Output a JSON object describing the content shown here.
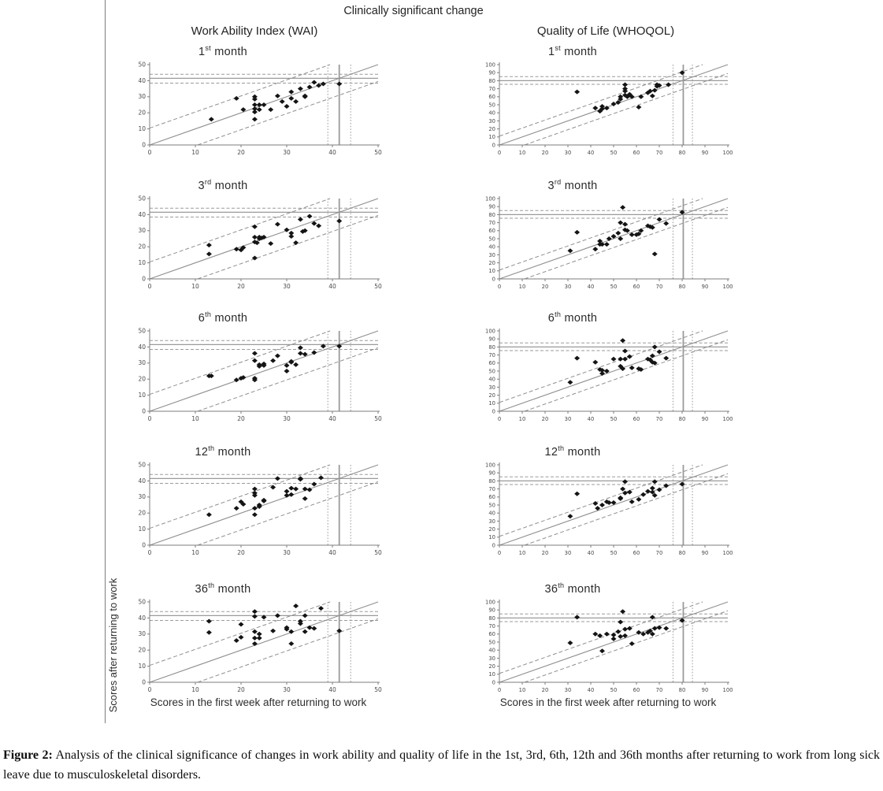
{
  "figure": {
    "title": "Clinically significant change",
    "column_headers": [
      "Work Ability Index (WAI)",
      "Quality of Life (WHOQOL)"
    ],
    "x_axis_label": "Scores in the first week after returning to work",
    "y_axis_label": "Scores after returning to work",
    "colors": {
      "axis_gray": "#7d7d7d",
      "line_gray": "#8f8f8f",
      "ref_gray": "#9a9a9a",
      "point_black": "#141414",
      "tick_text": "#4a4a4a"
    }
  },
  "caption": {
    "label": "Figure 2:",
    "text": "Analysis of the clinical significance of changes in work ability and quality of life in the 1st, 3rd, 6th, 12th and 36th months after returning to work from long sick leave due to musculoskeletal disorders."
  },
  "chart_data": [
    {
      "type": "scatter",
      "panel": "WAI",
      "month": {
        "num": "1",
        "sup": "st",
        "rest": " month"
      },
      "xlim": [
        0,
        50
      ],
      "ylim": [
        0,
        50
      ],
      "ticks": [
        0,
        10,
        20,
        30,
        40,
        50
      ],
      "identity_line": true,
      "band_offset": 10.5,
      "ref_h_solid": 41.5,
      "ref_h_dashed": [
        44,
        38.5
      ],
      "ref_v_solid": 41.5,
      "ref_v_dashed": [
        39,
        44
      ],
      "points": [
        [
          13.5,
          16
        ],
        [
          19,
          29
        ],
        [
          20.5,
          22
        ],
        [
          23,
          30
        ],
        [
          23,
          28.5
        ],
        [
          23,
          25
        ],
        [
          23,
          22.5
        ],
        [
          23,
          20.5
        ],
        [
          23,
          16
        ],
        [
          24,
          25
        ],
        [
          24,
          22
        ],
        [
          25,
          25
        ],
        [
          26.5,
          22
        ],
        [
          28,
          30.5
        ],
        [
          29,
          27
        ],
        [
          30,
          24
        ],
        [
          31,
          33
        ],
        [
          31,
          29
        ],
        [
          32,
          27
        ],
        [
          33,
          35
        ],
        [
          34,
          30.5
        ],
        [
          34,
          30
        ],
        [
          35,
          36
        ],
        [
          36,
          39
        ],
        [
          37,
          37
        ],
        [
          38,
          38
        ],
        [
          41.5,
          38
        ]
      ]
    },
    {
      "type": "scatter",
      "panel": "WHOQOL",
      "month": {
        "num": "1",
        "sup": "st",
        "rest": " month"
      },
      "xlim": [
        0,
        100
      ],
      "ylim": [
        0,
        100
      ],
      "ticks": [
        0,
        10,
        20,
        30,
        40,
        50,
        60,
        70,
        80,
        90,
        100
      ],
      "identity_line": true,
      "band_offset": 11,
      "ref_h_solid": 80,
      "ref_h_dashed": [
        85,
        75.5
      ],
      "ref_v_solid": 80.5,
      "ref_v_dashed": [
        76,
        84.5
      ],
      "points": [
        [
          34,
          66
        ],
        [
          42,
          46
        ],
        [
          44,
          42
        ],
        [
          45,
          48
        ],
        [
          45,
          45
        ],
        [
          47,
          46
        ],
        [
          50,
          51
        ],
        [
          52,
          53
        ],
        [
          53,
          57
        ],
        [
          53,
          60
        ],
        [
          55,
          75
        ],
        [
          55,
          70
        ],
        [
          55,
          67
        ],
        [
          55,
          62
        ],
        [
          56,
          60
        ],
        [
          57,
          63
        ],
        [
          58,
          60
        ],
        [
          61,
          47
        ],
        [
          62,
          60
        ],
        [
          65,
          65
        ],
        [
          66,
          67
        ],
        [
          67,
          61
        ],
        [
          68,
          68
        ],
        [
          69,
          75
        ],
        [
          69,
          73
        ],
        [
          70,
          74
        ],
        [
          74,
          75
        ],
        [
          80,
          90
        ]
      ]
    },
    {
      "type": "scatter",
      "panel": "WAI",
      "month": {
        "num": "3",
        "sup": "rd",
        "rest": " month"
      },
      "xlim": [
        0,
        50
      ],
      "ylim": [
        0,
        50
      ],
      "ticks": [
        0,
        10,
        20,
        30,
        40,
        50
      ],
      "identity_line": true,
      "band_offset": 10.5,
      "ref_h_solid": 41.5,
      "ref_h_dashed": [
        44,
        38.5
      ],
      "ref_v_solid": 41.5,
      "ref_v_dashed": [
        39,
        44
      ],
      "points": [
        [
          13,
          21
        ],
        [
          13,
          15.5
        ],
        [
          19,
          18.5
        ],
        [
          20,
          18
        ],
        [
          20.5,
          19.5
        ],
        [
          23,
          32.5
        ],
        [
          23,
          26
        ],
        [
          23,
          23
        ],
        [
          23,
          13
        ],
        [
          23.5,
          22.5
        ],
        [
          24,
          26
        ],
        [
          24,
          25
        ],
        [
          24.5,
          25.5
        ],
        [
          25,
          26
        ],
        [
          26.5,
          22
        ],
        [
          28,
          34
        ],
        [
          30,
          30.5
        ],
        [
          31,
          28.5
        ],
        [
          31,
          26.5
        ],
        [
          32,
          22.5
        ],
        [
          33,
          37
        ],
        [
          33.5,
          29.5
        ],
        [
          34,
          30
        ],
        [
          35,
          39
        ],
        [
          36,
          34.5
        ],
        [
          37,
          33
        ],
        [
          41.5,
          36
        ]
      ]
    },
    {
      "type": "scatter",
      "panel": "WHOQOL",
      "month": {
        "num": "3",
        "sup": "rd",
        "rest": " month"
      },
      "xlim": [
        0,
        100
      ],
      "ylim": [
        0,
        100
      ],
      "ticks": [
        0,
        10,
        20,
        30,
        40,
        50,
        60,
        70,
        80,
        90,
        100
      ],
      "identity_line": true,
      "band_offset": 11,
      "ref_h_solid": 80,
      "ref_h_dashed": [
        85,
        75.5
      ],
      "ref_v_solid": 80.5,
      "ref_v_dashed": [
        76,
        84.5
      ],
      "points": [
        [
          31,
          35
        ],
        [
          34,
          58
        ],
        [
          42,
          37
        ],
        [
          44,
          47
        ],
        [
          44,
          43
        ],
        [
          45,
          43
        ],
        [
          47,
          43
        ],
        [
          48,
          50
        ],
        [
          50,
          53
        ],
        [
          52,
          57
        ],
        [
          53,
          50
        ],
        [
          53,
          70
        ],
        [
          54,
          89
        ],
        [
          55,
          68
        ],
        [
          55,
          61
        ],
        [
          56,
          60
        ],
        [
          58,
          55
        ],
        [
          60,
          55
        ],
        [
          61,
          56
        ],
        [
          62,
          60
        ],
        [
          65,
          66
        ],
        [
          66,
          65
        ],
        [
          67,
          64
        ],
        [
          68,
          31
        ],
        [
          70,
          74
        ],
        [
          73,
          69
        ],
        [
          80,
          83
        ]
      ]
    },
    {
      "type": "scatter",
      "panel": "WAI",
      "month": {
        "num": "6",
        "sup": "th",
        "rest": " month"
      },
      "xlim": [
        0,
        50
      ],
      "ylim": [
        0,
        50
      ],
      "ticks": [
        0,
        10,
        20,
        30,
        40,
        50
      ],
      "identity_line": true,
      "band_offset": 10.5,
      "ref_h_solid": 41.5,
      "ref_h_dashed": [
        44,
        38.5
      ],
      "ref_v_solid": 41.5,
      "ref_v_dashed": [
        39,
        44
      ],
      "points": [
        [
          13,
          22
        ],
        [
          13.5,
          22
        ],
        [
          19,
          19.5
        ],
        [
          20,
          20.5
        ],
        [
          20.5,
          21
        ],
        [
          23,
          36
        ],
        [
          23,
          31.5
        ],
        [
          23,
          20.5
        ],
        [
          23,
          19.5
        ],
        [
          24,
          29
        ],
        [
          24,
          28
        ],
        [
          25,
          29.5
        ],
        [
          25,
          28.5
        ],
        [
          27,
          31.5
        ],
        [
          28,
          34.5
        ],
        [
          30,
          28.5
        ],
        [
          30,
          25
        ],
        [
          31,
          31
        ],
        [
          31,
          30.5
        ],
        [
          32,
          29
        ],
        [
          33,
          39.5
        ],
        [
          33,
          36
        ],
        [
          34,
          35.5
        ],
        [
          36,
          36.5
        ],
        [
          38,
          40.5
        ],
        [
          41.5,
          40.5
        ]
      ]
    },
    {
      "type": "scatter",
      "panel": "WHOQOL",
      "month": {
        "num": "6",
        "sup": "th",
        "rest": " month"
      },
      "xlim": [
        0,
        100
      ],
      "ylim": [
        0,
        100
      ],
      "ticks": [
        0,
        10,
        20,
        30,
        40,
        50,
        60,
        70,
        80,
        90,
        100
      ],
      "identity_line": true,
      "band_offset": 11,
      "ref_h_solid": 80,
      "ref_h_dashed": [
        85,
        75.5
      ],
      "ref_v_solid": 80.5,
      "ref_v_dashed": [
        76,
        84.5
      ],
      "points": [
        [
          31,
          36
        ],
        [
          34,
          66
        ],
        [
          42,
          61
        ],
        [
          44,
          52
        ],
        [
          45,
          51
        ],
        [
          45,
          47
        ],
        [
          47,
          50
        ],
        [
          50,
          65
        ],
        [
          53,
          65
        ],
        [
          53,
          56
        ],
        [
          54,
          53
        ],
        [
          54,
          88
        ],
        [
          55,
          75
        ],
        [
          55,
          65
        ],
        [
          57,
          68
        ],
        [
          58,
          54
        ],
        [
          61,
          53
        ],
        [
          62,
          52
        ],
        [
          65,
          65
        ],
        [
          66,
          64
        ],
        [
          67,
          69
        ],
        [
          67,
          61
        ],
        [
          68,
          80
        ],
        [
          68,
          60
        ],
        [
          70,
          74
        ],
        [
          73,
          66
        ]
      ]
    },
    {
      "type": "scatter",
      "panel": "WAI",
      "month": {
        "num": "12",
        "sup": "th",
        "rest": " month"
      },
      "xlim": [
        0,
        50
      ],
      "ylim": [
        0,
        50
      ],
      "ticks": [
        0,
        10,
        20,
        30,
        40,
        50
      ],
      "identity_line": true,
      "band_offset": 10.5,
      "ref_h_solid": 41.5,
      "ref_h_dashed": [
        44,
        38.5
      ],
      "ref_v_solid": 41.5,
      "ref_v_dashed": [
        39,
        44
      ],
      "points": [
        [
          13,
          19
        ],
        [
          19,
          23
        ],
        [
          20,
          27
        ],
        [
          20.5,
          25.5
        ],
        [
          23,
          35
        ],
        [
          23,
          32.5
        ],
        [
          23,
          31
        ],
        [
          23,
          23
        ],
        [
          23,
          19
        ],
        [
          24,
          25
        ],
        [
          24,
          24
        ],
        [
          25,
          28
        ],
        [
          25,
          27.5
        ],
        [
          27,
          36
        ],
        [
          28,
          41.5
        ],
        [
          30,
          33.5
        ],
        [
          30,
          31
        ],
        [
          31,
          35.5
        ],
        [
          31,
          31.5
        ],
        [
          32,
          35
        ],
        [
          33,
          41.5
        ],
        [
          33,
          41
        ],
        [
          34,
          35
        ],
        [
          34,
          29
        ],
        [
          35,
          34.5
        ],
        [
          36,
          38
        ],
        [
          37.5,
          42
        ]
      ]
    },
    {
      "type": "scatter",
      "panel": "WHOQOL",
      "month": {
        "num": "12",
        "sup": "th",
        "rest": " month"
      },
      "xlim": [
        0,
        100
      ],
      "ylim": [
        0,
        100
      ],
      "ticks": [
        0,
        10,
        20,
        30,
        40,
        50,
        60,
        70,
        80,
        90,
        100
      ],
      "identity_line": true,
      "band_offset": 11,
      "ref_h_solid": 80,
      "ref_h_dashed": [
        85,
        75.5
      ],
      "ref_v_solid": 80.5,
      "ref_v_dashed": [
        76,
        84.5
      ],
      "points": [
        [
          31,
          36
        ],
        [
          34,
          64
        ],
        [
          42,
          52
        ],
        [
          43,
          46
        ],
        [
          45,
          50
        ],
        [
          47,
          54
        ],
        [
          48,
          53
        ],
        [
          50,
          53
        ],
        [
          53,
          59
        ],
        [
          53,
          58
        ],
        [
          54,
          70
        ],
        [
          55,
          79
        ],
        [
          55,
          65
        ],
        [
          57,
          66
        ],
        [
          58,
          54
        ],
        [
          61,
          57
        ],
        [
          63,
          63
        ],
        [
          65,
          67
        ],
        [
          67,
          71
        ],
        [
          67,
          66
        ],
        [
          68,
          79
        ],
        [
          68,
          62
        ],
        [
          70,
          69
        ],
        [
          73,
          74
        ],
        [
          80,
          76
        ]
      ]
    },
    {
      "type": "scatter",
      "panel": "WAI",
      "month": {
        "num": "36",
        "sup": "th",
        "rest": " month"
      },
      "xlim": [
        0,
        50
      ],
      "ylim": [
        0,
        50
      ],
      "ticks": [
        0,
        10,
        20,
        30,
        40,
        50
      ],
      "identity_line": true,
      "band_offset": 10.5,
      "ref_h_solid": 41.5,
      "ref_h_dashed": [
        44,
        38.5
      ],
      "ref_v_solid": 41.5,
      "ref_v_dashed": [
        39,
        44
      ],
      "points": [
        [
          13,
          38
        ],
        [
          13,
          31
        ],
        [
          19,
          26
        ],
        [
          20,
          36
        ],
        [
          20,
          28
        ],
        [
          23,
          44
        ],
        [
          23,
          41
        ],
        [
          23,
          31.5
        ],
        [
          23,
          27.5
        ],
        [
          23,
          24
        ],
        [
          24,
          30
        ],
        [
          24,
          27.5
        ],
        [
          25,
          40.5
        ],
        [
          27,
          32
        ],
        [
          28,
          41.5
        ],
        [
          30,
          34
        ],
        [
          30,
          33
        ],
        [
          31,
          31.5
        ],
        [
          31,
          24
        ],
        [
          32,
          47.5
        ],
        [
          33,
          38
        ],
        [
          33,
          36.5
        ],
        [
          34,
          41.5
        ],
        [
          34,
          31.5
        ],
        [
          35,
          34
        ],
        [
          36,
          33.5
        ],
        [
          37.5,
          46
        ],
        [
          41.5,
          32
        ]
      ]
    },
    {
      "type": "scatter",
      "panel": "WHOQOL",
      "month": {
        "num": "36",
        "sup": "th",
        "rest": " month"
      },
      "xlim": [
        0,
        100
      ],
      "ylim": [
        0,
        100
      ],
      "ticks": [
        0,
        10,
        20,
        30,
        40,
        50,
        60,
        70,
        80,
        90,
        100
      ],
      "identity_line": true,
      "band_offset": 11,
      "ref_h_solid": 80,
      "ref_h_dashed": [
        85,
        75.5
      ],
      "ref_v_solid": 80.5,
      "ref_v_dashed": [
        76,
        84.5
      ],
      "points": [
        [
          31,
          49
        ],
        [
          34,
          81
        ],
        [
          42,
          60
        ],
        [
          44,
          58
        ],
        [
          45,
          39
        ],
        [
          47,
          60
        ],
        [
          50,
          59
        ],
        [
          50,
          54
        ],
        [
          52,
          63
        ],
        [
          53,
          57
        ],
        [
          53,
          75
        ],
        [
          54,
          88
        ],
        [
          55,
          58
        ],
        [
          55,
          66
        ],
        [
          57,
          67
        ],
        [
          58,
          48
        ],
        [
          61,
          62
        ],
        [
          63,
          60
        ],
        [
          65,
          62
        ],
        [
          66,
          64
        ],
        [
          67,
          81
        ],
        [
          67,
          60
        ],
        [
          68,
          67
        ],
        [
          70,
          68
        ],
        [
          73,
          67
        ],
        [
          80,
          77
        ]
      ]
    }
  ]
}
